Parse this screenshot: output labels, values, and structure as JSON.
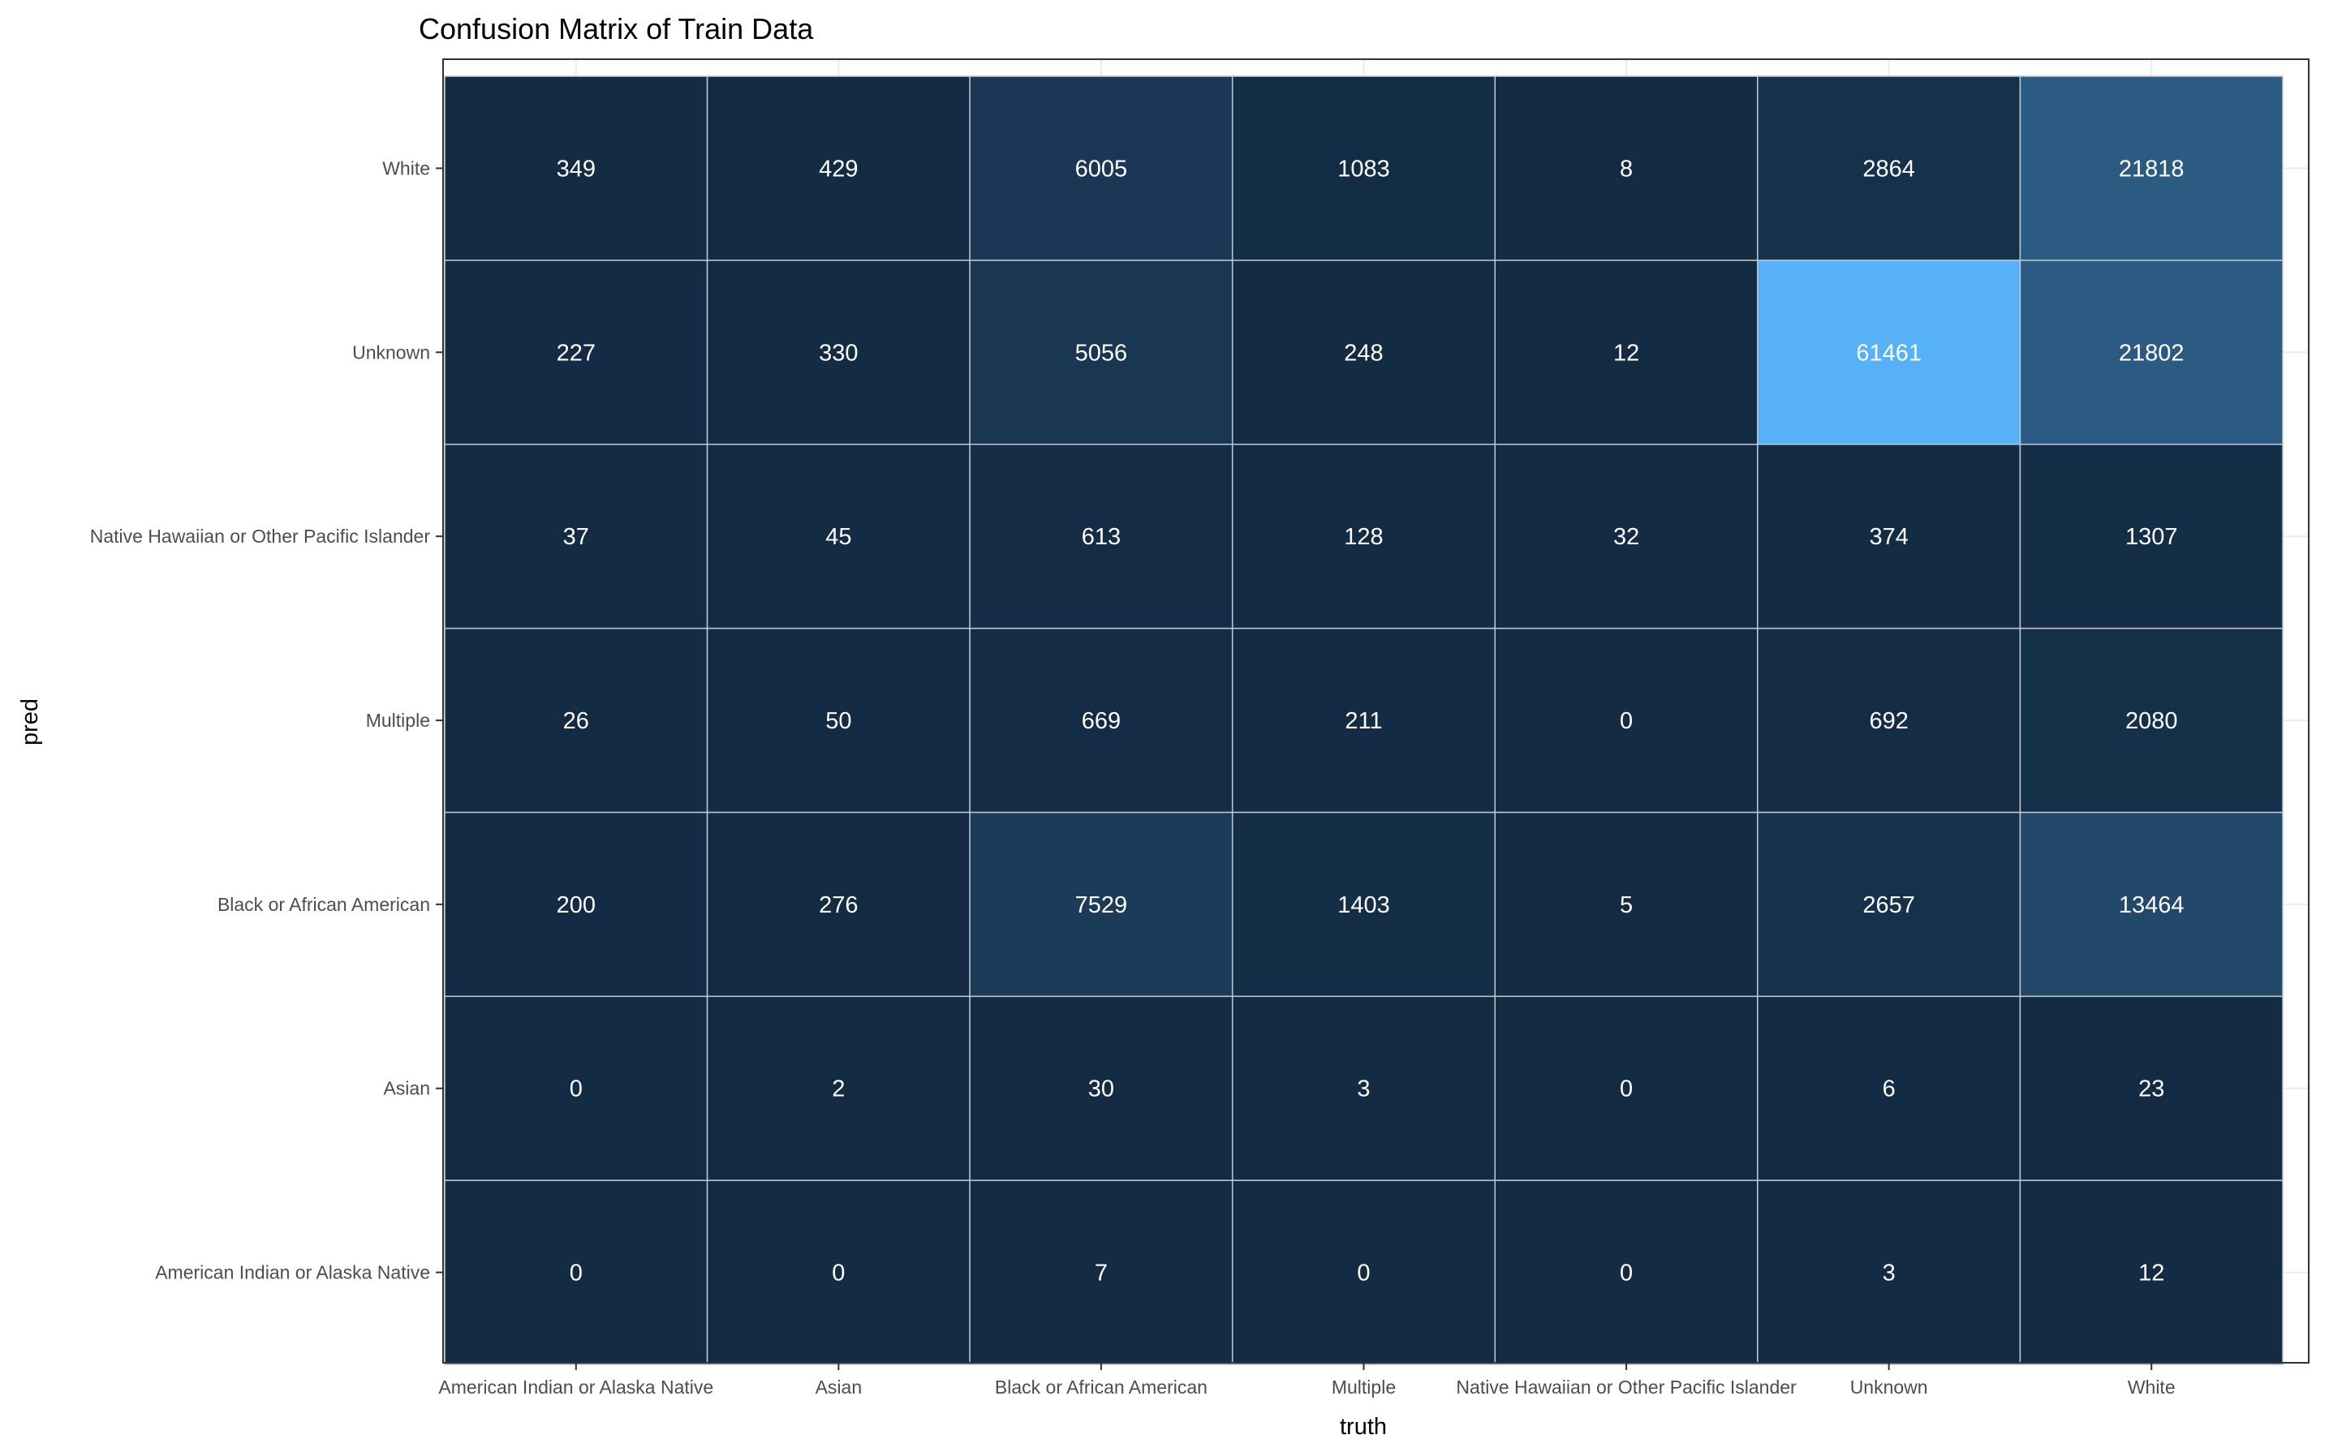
{
  "chart_data": {
    "type": "heatmap",
    "title": "Confusion Matrix of Train Data",
    "xlabel": "truth",
    "ylabel": "pred",
    "x_categories": [
      "American Indian or Alaska Native",
      "Asian",
      "Black or African American",
      "Multiple",
      "Native Hawaiian or Other Pacific Islander",
      "Unknown",
      "White"
    ],
    "y_categories": [
      "American Indian or Alaska Native",
      "Asian",
      "Black or African American",
      "Multiple",
      "Native Hawaiian or Other Pacific Islander",
      "Unknown",
      "White"
    ],
    "values": [
      [
        0,
        0,
        7,
        0,
        0,
        3,
        12
      ],
      [
        0,
        2,
        30,
        3,
        0,
        6,
        23
      ],
      [
        200,
        276,
        7529,
        1403,
        5,
        2657,
        13464
      ],
      [
        26,
        50,
        669,
        211,
        0,
        692,
        2080
      ],
      [
        37,
        45,
        613,
        128,
        32,
        374,
        1307
      ],
      [
        227,
        330,
        5056,
        248,
        12,
        61461,
        21802
      ],
      [
        349,
        429,
        6005,
        1083,
        8,
        2864,
        21818
      ]
    ],
    "color_low": "#132b43",
    "color_high": "#56b1f7",
    "grid": true,
    "legend": "none"
  }
}
